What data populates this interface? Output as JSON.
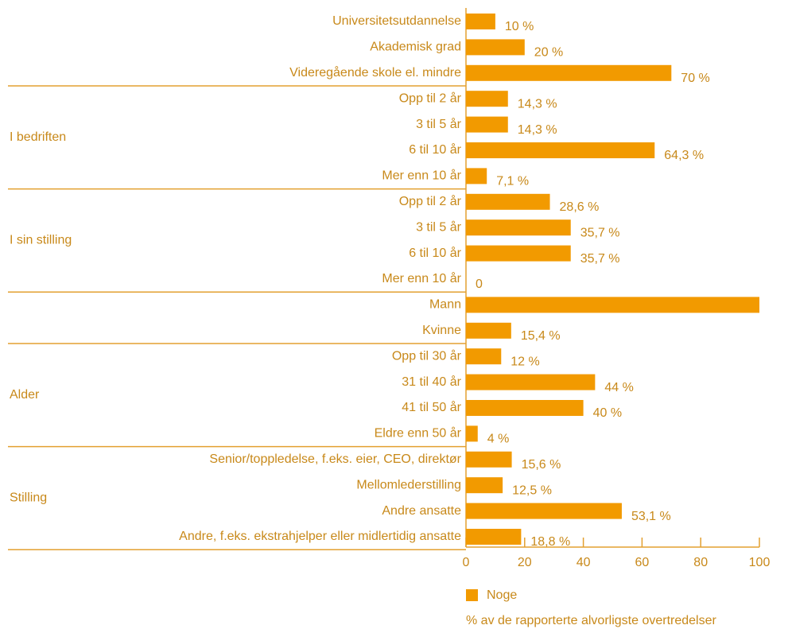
{
  "chart_data": {
    "type": "bar",
    "orientation": "horizontal",
    "categories": [
      "Universitetsutdannelse",
      "Akademisk grad",
      "Videregående skole el. mindre",
      "Opp til 2 år",
      "3 til 5 år",
      "6 til 10 år",
      "Mer enn 10 år",
      "Opp til 2 år",
      "3 til 5 år",
      "6 til 10 år",
      "Mer enn 10 år",
      "Mann",
      "Kvinne",
      "Opp til 30 år",
      "31 til 40 år",
      "41 til 50 år",
      "Eldre enn 50 år",
      "Senior/toppledelse, f.eks. eier, CEO, direktør",
      "Mellomlederstilling",
      "Andre ansatte",
      "Andre, f.eks. ekstrahjelper eller midlertidig ansatte"
    ],
    "groups": [
      "I bedriften",
      "I sin stilling",
      "Alder",
      "Stilling"
    ],
    "series": [
      {
        "name": "Noge",
        "color": "#f29a00",
        "values": [
          10,
          20,
          70,
          14.3,
          14.3,
          64.3,
          7.1,
          28.6,
          35.7,
          35.7,
          0,
          100,
          15.4,
          12,
          44,
          40,
          4,
          15.6,
          12.5,
          53.1,
          18.8
        ],
        "value_labels": [
          "10 %",
          "20 %",
          "70 %",
          "14,3 %",
          "14,3 %",
          "64,3 %",
          "7,1 %",
          "28,6 %",
          "35,7 %",
          "35,7 %",
          "0",
          null,
          "15,4 %",
          "12 %",
          "44 %",
          "40 %",
          "4 %",
          "15,6 %",
          "12,5 %",
          "53,1 %",
          "18,8 %"
        ]
      }
    ],
    "xlim": [
      0,
      100
    ],
    "xticks": [
      0,
      20,
      40,
      60,
      80,
      100
    ],
    "note": "% av de rapporterte alvorligste overtredelser"
  }
}
